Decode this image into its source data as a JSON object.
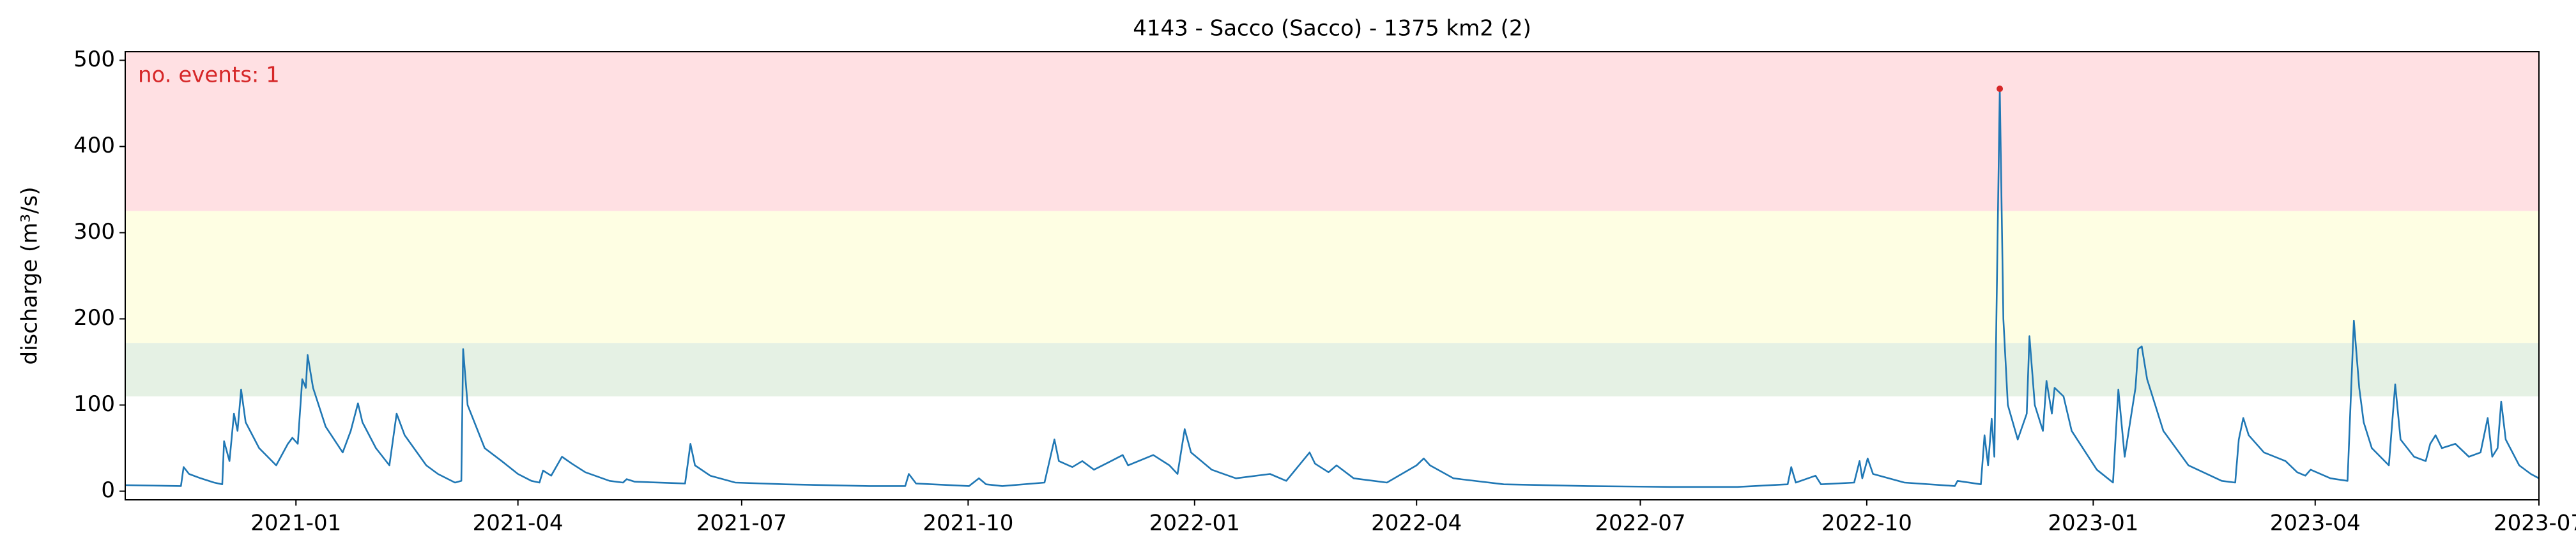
{
  "chart_data": {
    "type": "line",
    "title": "4143 - Sacco (Sacco) - 1375 km2 (2)",
    "y_label": "discharge (m³/s)",
    "annotation": "no. events: 1",
    "xlim": [
      2020.81,
      2023.496
    ],
    "ylim": [
      -10,
      510
    ],
    "xticks": [
      {
        "value": 2021.0,
        "label": "2021-01"
      },
      {
        "value": 2021.247,
        "label": "2021-04"
      },
      {
        "value": 2021.496,
        "label": "2021-07"
      },
      {
        "value": 2021.748,
        "label": "2021-10"
      },
      {
        "value": 2022.0,
        "label": "2022-01"
      },
      {
        "value": 2022.247,
        "label": "2022-04"
      },
      {
        "value": 2022.496,
        "label": "2022-07"
      },
      {
        "value": 2022.748,
        "label": "2022-10"
      },
      {
        "value": 2023.0,
        "label": "2023-01"
      },
      {
        "value": 2023.247,
        "label": "2023-04"
      },
      {
        "value": 2023.496,
        "label": "2023-07"
      }
    ],
    "yticks": [
      0,
      100,
      200,
      300,
      400,
      500
    ],
    "bands": [
      {
        "ymin": 325,
        "ymax": 510,
        "color": "#ffe0e3"
      },
      {
        "ymin": 172,
        "ymax": 325,
        "color": "#fefee3"
      },
      {
        "ymin": 110,
        "ymax": 172,
        "color": "#e5f1e4"
      }
    ],
    "x": [
      2020.81,
      2020.872,
      2020.875,
      2020.881,
      2020.894,
      2020.909,
      2020.918,
      2020.92,
      2020.926,
      2020.931,
      2020.935,
      2020.939,
      2020.944,
      2020.959,
      2020.978,
      2020.991,
      2020.996,
      2021.002,
      2021.007,
      2021.011,
      2021.013,
      2021.019,
      2021.033,
      2021.052,
      2021.061,
      2021.069,
      2021.074,
      2021.089,
      2021.104,
      2021.112,
      2021.121,
      2021.145,
      2021.158,
      2021.177,
      2021.184,
      2021.186,
      2021.191,
      2021.21,
      2021.229,
      2021.247,
      2021.262,
      2021.271,
      2021.275,
      2021.284,
      2021.296,
      2021.307,
      2021.322,
      2021.349,
      2021.364,
      2021.368,
      2021.377,
      2021.433,
      2021.439,
      2021.444,
      2021.461,
      2021.489,
      2021.545,
      2021.638,
      2021.678,
      2021.682,
      2021.69,
      2021.749,
      2021.76,
      2021.768,
      2021.786,
      2021.833,
      2021.844,
      2021.849,
      2021.864,
      2021.875,
      2021.888,
      2021.907,
      2021.92,
      2021.926,
      2021.954,
      2021.972,
      2021.981,
      2021.989,
      2021.996,
      2022.019,
      2022.046,
      2022.084,
      2022.102,
      2022.128,
      2022.134,
      2022.149,
      2022.158,
      2022.177,
      2022.214,
      2022.247,
      2022.255,
      2022.262,
      2022.288,
      2022.344,
      2022.437,
      2022.53,
      2022.604,
      2022.66,
      2022.664,
      2022.669,
      2022.691,
      2022.697,
      2022.734,
      2022.74,
      2022.743,
      2022.749,
      2022.755,
      2022.79,
      2022.846,
      2022.849,
      2022.875,
      2022.879,
      2022.883,
      2022.887,
      2022.89,
      2022.896,
      2022.9,
      2022.905,
      2022.916,
      2022.926,
      2022.929,
      2022.935,
      2022.944,
      2022.948,
      2022.954,
      2022.957,
      2022.967,
      2022.976,
      2023.004,
      2023.022,
      2023.028,
      2023.035,
      2023.047,
      2023.05,
      2023.054,
      2023.06,
      2023.078,
      2023.106,
      2023.143,
      2023.158,
      2023.162,
      2023.167,
      2023.173,
      2023.19,
      2023.214,
      2023.227,
      2023.236,
      2023.242,
      2023.264,
      2023.283,
      2023.29,
      2023.296,
      2023.301,
      2023.31,
      2023.329,
      2023.336,
      2023.342,
      2023.357,
      2023.37,
      2023.375,
      2023.381,
      2023.388,
      2023.403,
      2023.418,
      2023.431,
      2023.439,
      2023.444,
      2023.45,
      2023.454,
      2023.459,
      2023.474,
      2023.487,
      2023.496
    ],
    "series": [
      {
        "color": "#1f77b4",
        "values": [
          7,
          6,
          28,
          20,
          15,
          10,
          8,
          58,
          35,
          90,
          70,
          118,
          80,
          50,
          30,
          55,
          62,
          55,
          130,
          120,
          158,
          120,
          75,
          45,
          70,
          102,
          80,
          50,
          30,
          90,
          65,
          30,
          20,
          10,
          12,
          165,
          100,
          50,
          35,
          20,
          12,
          10,
          24,
          18,
          40,
          32,
          22,
          12,
          10,
          14,
          11,
          9,
          55,
          30,
          18,
          10,
          8,
          6,
          6,
          20,
          9,
          6,
          15,
          8,
          6,
          10,
          60,
          35,
          28,
          35,
          25,
          35,
          42,
          30,
          42,
          30,
          20,
          72,
          45,
          25,
          15,
          20,
          12,
          45,
          32,
          22,
          30,
          15,
          10,
          30,
          38,
          30,
          15,
          8,
          6,
          5,
          5,
          8,
          28,
          10,
          18,
          8,
          10,
          35,
          15,
          38,
          20,
          10,
          6,
          12,
          8,
          65,
          30,
          84,
          40,
          467,
          200,
          100,
          60,
          90,
          180,
          100,
          70,
          128,
          90,
          120,
          110,
          70,
          25,
          10,
          118,
          40,
          120,
          165,
          168,
          130,
          70,
          30,
          12,
          10,
          60,
          85,
          65,
          45,
          35,
          22,
          18,
          25,
          15,
          12,
          198,
          120,
          80,
          50,
          30,
          124,
          60,
          40,
          35,
          55,
          65,
          50,
          55,
          40,
          45,
          85,
          40,
          50,
          104,
          60,
          30,
          20,
          15
        ]
      }
    ],
    "events": {
      "color": "#d62728",
      "x": [
        2022.896
      ],
      "values": [
        467
      ]
    }
  }
}
